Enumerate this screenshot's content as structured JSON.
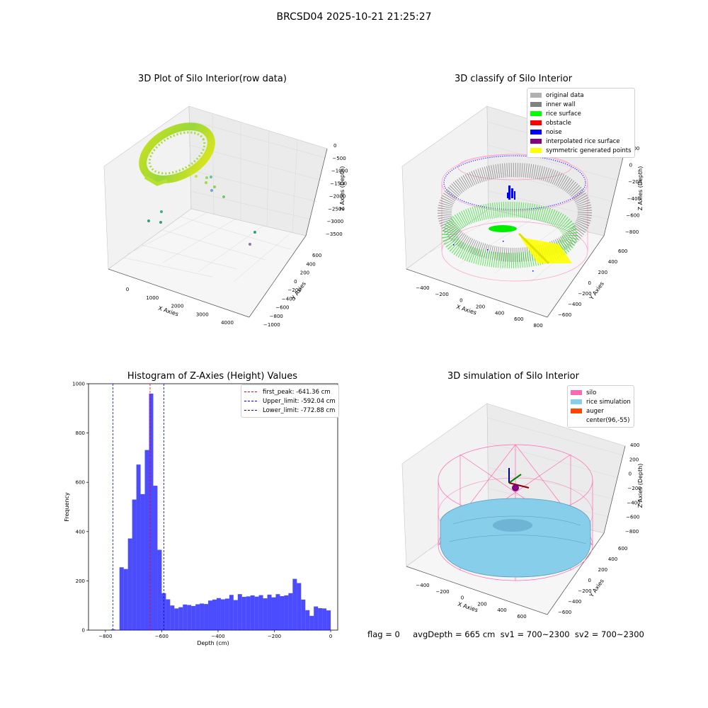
{
  "suptitle": "BRCSD04 2025-10-21 21:25:27",
  "panels": {
    "raw": {
      "title": "3D Plot of Silo Interior(row data)",
      "xlabel": "X Axies",
      "ylabel": "Y Axies",
      "zlabel": "Z Axies (Depth)",
      "xticks": [
        "0",
        "1000",
        "2000",
        "3000",
        "4000"
      ],
      "yticks": [
        "600",
        "400",
        "200",
        "0",
        "−200",
        "−400",
        "−600",
        "−800",
        "−1000"
      ],
      "zticks": [
        "0",
        "−500",
        "−1000",
        "−1500",
        "−2000",
        "−2500",
        "−3000",
        "−3500"
      ]
    },
    "classify": {
      "title": "3D classify of Silo Interior",
      "xlabel": "X Axies",
      "ylabel": "Y Axies",
      "zlabel": "Z Axies (Depth)",
      "xticks": [
        "−400",
        "−200",
        "0",
        "200",
        "400",
        "600",
        "800"
      ],
      "yticks": [
        "600",
        "400",
        "200",
        "0",
        "−200",
        "−400",
        "−600"
      ],
      "zticks": [
        "200",
        "0",
        "−200",
        "−400",
        "−600",
        "−800"
      ],
      "legend": [
        {
          "label": "original data",
          "color": "#b0b0b0"
        },
        {
          "label": "inner wall",
          "color": "#808080"
        },
        {
          "label": "rice surface",
          "color": "#00ff00"
        },
        {
          "label": "obstacle",
          "color": "#ff0000"
        },
        {
          "label": "noise",
          "color": "#0000ff"
        },
        {
          "label": "interpolated rice surface",
          "color": "#800080"
        },
        {
          "label": "symmetric generated points",
          "color": "#ffff00"
        }
      ]
    },
    "simulation": {
      "title": "3D simulation of Silo Interior",
      "xlabel": "X Axies",
      "ylabel": "Y Axies",
      "zlabel": "Z Axies (Depth)",
      "xticks": [
        "−400",
        "−200",
        "0",
        "200",
        "400",
        "600"
      ],
      "yticks": [
        "600",
        "400",
        "200",
        "0",
        "−200",
        "−400",
        "−600"
      ],
      "zticks": [
        "400",
        "200",
        "0",
        "−200",
        "−400",
        "−600",
        "−800"
      ],
      "legend": [
        {
          "label": "silo",
          "color": "#ff69b4"
        },
        {
          "label": "rice simulation",
          "color": "#87ceeb"
        },
        {
          "label": "auger",
          "color": "#ff4500"
        },
        {
          "label": "center(96,-55)",
          "color": ""
        }
      ]
    }
  },
  "chart_data": {
    "type": "bar",
    "title": "Histogram of Z-Axies (Height) Values",
    "xlabel": "Depth (cm)",
    "ylabel": "Frequency",
    "xlim": [
      -860,
      25
    ],
    "ylim": [
      0,
      1000
    ],
    "xticks": [
      -800,
      -600,
      -400,
      -200,
      0
    ],
    "yticks": [
      0,
      200,
      400,
      600,
      800,
      1000
    ],
    "bar_color": "#0000ff",
    "bins": [
      {
        "x0": -780,
        "x1": -765,
        "count": 3
      },
      {
        "x0": -765,
        "x1": -750,
        "count": 1
      },
      {
        "x0": -750,
        "x1": -735,
        "count": 255
      },
      {
        "x0": -735,
        "x1": -720,
        "count": 248
      },
      {
        "x0": -720,
        "x1": -705,
        "count": 372
      },
      {
        "x0": -705,
        "x1": -690,
        "count": 530
      },
      {
        "x0": -690,
        "x1": -675,
        "count": 672
      },
      {
        "x0": -675,
        "x1": -660,
        "count": 552
      },
      {
        "x0": -660,
        "x1": -645,
        "count": 731
      },
      {
        "x0": -645,
        "x1": -630,
        "count": 960
      },
      {
        "x0": -630,
        "x1": -615,
        "count": 586
      },
      {
        "x0": -615,
        "x1": -600,
        "count": 326
      },
      {
        "x0": -600,
        "x1": -585,
        "count": 150
      },
      {
        "x0": -585,
        "x1": -570,
        "count": 125
      },
      {
        "x0": -570,
        "x1": -555,
        "count": 100
      },
      {
        "x0": -555,
        "x1": -540,
        "count": 88
      },
      {
        "x0": -540,
        "x1": -525,
        "count": 93
      },
      {
        "x0": -525,
        "x1": -510,
        "count": 104
      },
      {
        "x0": -510,
        "x1": -495,
        "count": 102
      },
      {
        "x0": -495,
        "x1": -480,
        "count": 98
      },
      {
        "x0": -480,
        "x1": -465,
        "count": 105
      },
      {
        "x0": -465,
        "x1": -450,
        "count": 108
      },
      {
        "x0": -450,
        "x1": -435,
        "count": 106
      },
      {
        "x0": -435,
        "x1": -420,
        "count": 120
      },
      {
        "x0": -420,
        "x1": -405,
        "count": 124
      },
      {
        "x0": -405,
        "x1": -390,
        "count": 130
      },
      {
        "x0": -390,
        "x1": -375,
        "count": 125
      },
      {
        "x0": -375,
        "x1": -360,
        "count": 128
      },
      {
        "x0": -360,
        "x1": -345,
        "count": 143
      },
      {
        "x0": -345,
        "x1": -330,
        "count": 122
      },
      {
        "x0": -330,
        "x1": -315,
        "count": 146
      },
      {
        "x0": -315,
        "x1": -300,
        "count": 135
      },
      {
        "x0": -300,
        "x1": -285,
        "count": 137
      },
      {
        "x0": -285,
        "x1": -270,
        "count": 141
      },
      {
        "x0": -270,
        "x1": -255,
        "count": 136
      },
      {
        "x0": -255,
        "x1": -240,
        "count": 142
      },
      {
        "x0": -240,
        "x1": -225,
        "count": 129
      },
      {
        "x0": -225,
        "x1": -210,
        "count": 144
      },
      {
        "x0": -210,
        "x1": -195,
        "count": 133
      },
      {
        "x0": -195,
        "x1": -180,
        "count": 146
      },
      {
        "x0": -180,
        "x1": -165,
        "count": 138
      },
      {
        "x0": -165,
        "x1": -150,
        "count": 141
      },
      {
        "x0": -150,
        "x1": -135,
        "count": 150
      },
      {
        "x0": -135,
        "x1": -120,
        "count": 208
      },
      {
        "x0": -120,
        "x1": -105,
        "count": 191
      },
      {
        "x0": -105,
        "x1": -90,
        "count": 124
      },
      {
        "x0": -90,
        "x1": -75,
        "count": 81
      },
      {
        "x0": -75,
        "x1": -60,
        "count": 58
      },
      {
        "x0": -60,
        "x1": -45,
        "count": 96
      },
      {
        "x0": -45,
        "x1": -30,
        "count": 89
      },
      {
        "x0": -30,
        "x1": -15,
        "count": 88
      },
      {
        "x0": -15,
        "x1": 0,
        "count": 80
      }
    ],
    "vlines": [
      {
        "label": "first_peak: -641.36 cm",
        "x": -641.36,
        "color": "#ff0000"
      },
      {
        "label": "Upper_limit: -592.04 cm",
        "x": -592.04,
        "color": "#0000ff"
      },
      {
        "label": "Lower_limit: -772.88 cm",
        "x": -772.88,
        "color": "#0000ff"
      }
    ],
    "legend_position": "top-right"
  },
  "footer": "flag = 0     avgDepth = 665 cm  sv1 = 700~2300  sv2 = 700~2300"
}
